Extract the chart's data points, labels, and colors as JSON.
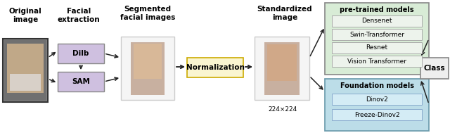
{
  "bg_color": "#ffffff",
  "title_label1": "Original\nimage",
  "title_label2": "Facial\nextraction",
  "title_label3": "Segmented\nfacial images",
  "title_label4": "Standardized\nimage",
  "dilb_label": "Dilb",
  "sam_label": "SAM",
  "norm_label": "Normalization",
  "size_label": "224×224",
  "pretrained_title": "pre-trained models",
  "pretrained_models": [
    "Densenet",
    "Swin-Transformer",
    "Resnet",
    "Vision Transformer"
  ],
  "foundation_title": "Foundation models",
  "foundation_models": [
    "Dinov2",
    "Freeze-Dinov2"
  ],
  "class_label": "Class",
  "dilb_box_color": "#cfc0e0",
  "sam_box_color": "#cfc0e0",
  "norm_box_color": "#faf5d0",
  "pretrained_box_color": "#d8ecd6",
  "pretrained_border_color": "#888888",
  "foundation_box_color": "#bcdde8",
  "foundation_border_color": "#6899aa",
  "model_item_color": "#edf3ec",
  "foundation_item_color": "#d4ecf5",
  "class_box_color": "#eeeeee",
  "arrow_color": "#222222"
}
